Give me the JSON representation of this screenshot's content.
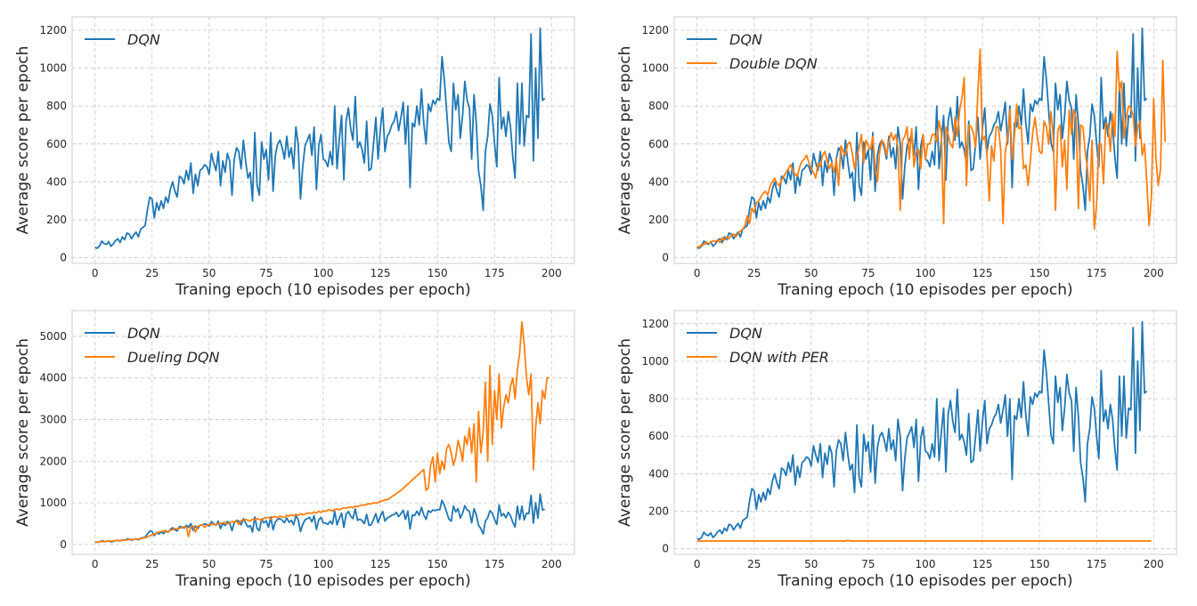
{
  "chart_data": [
    {
      "type": "line",
      "xlabel": "Traning epoch (10 episodes per epoch)",
      "ylabel": "Average score per epoch",
      "xlim": [
        -10,
        210
      ],
      "ylim": [
        -30,
        1270
      ],
      "xticks": [
        0,
        25,
        50,
        75,
        100,
        125,
        150,
        175,
        200
      ],
      "yticks": [
        0,
        200,
        400,
        600,
        800,
        1000,
        1200
      ],
      "grid": true,
      "legend": "top-left",
      "series": [
        {
          "name": "DQN",
          "color": "#1f77b4",
          "source": "dqn"
        }
      ]
    },
    {
      "type": "line",
      "xlabel": "Traning epoch (10 episodes per epoch)",
      "ylabel": "Average score per epoch",
      "xlim": [
        -10,
        210
      ],
      "ylim": [
        -30,
        1270
      ],
      "xticks": [
        0,
        25,
        50,
        75,
        100,
        125,
        150,
        175,
        200
      ],
      "yticks": [
        0,
        200,
        400,
        600,
        800,
        1000,
        1200
      ],
      "grid": true,
      "legend": "top-left",
      "series": [
        {
          "name": "DQN",
          "color": "#1f77b4",
          "source": "dqn"
        },
        {
          "name": "Double DQN",
          "color": "#ff7f0e",
          "source": "double"
        }
      ]
    },
    {
      "type": "line",
      "xlabel": "Traning epoch (10 episodes per epoch)",
      "ylabel": "Average score per epoch",
      "xlim": [
        -10,
        210
      ],
      "ylim": [
        -240,
        5620
      ],
      "xticks": [
        0,
        25,
        50,
        75,
        100,
        125,
        150,
        175,
        200
      ],
      "yticks": [
        0,
        1000,
        2000,
        3000,
        4000,
        5000
      ],
      "grid": true,
      "legend": "top-left",
      "series": [
        {
          "name": "DQN",
          "color": "#1f77b4",
          "source": "dqn"
        },
        {
          "name": "Dueling DQN",
          "color": "#ff7f0e",
          "source": "dueling"
        }
      ]
    },
    {
      "type": "line",
      "xlabel": "Traning epoch (10 episodes per epoch)",
      "ylabel": "Average score per epoch",
      "xlim": [
        -10,
        210
      ],
      "ylim": [
        -30,
        1270
      ],
      "xticks": [
        0,
        25,
        50,
        75,
        100,
        125,
        150,
        175,
        200
      ],
      "yticks": [
        0,
        200,
        400,
        600,
        800,
        1000,
        1200
      ],
      "grid": true,
      "legend": "top-left",
      "series": [
        {
          "name": "DQN",
          "color": "#1f77b4",
          "source": "dqn"
        },
        {
          "name": "DQN with PER",
          "color": "#ff7f0e",
          "source": "per"
        }
      ]
    }
  ],
  "series_values": {
    "dqn": [
      55,
      50,
      62,
      88,
      75,
      70,
      85,
      60,
      72,
      90,
      100,
      80,
      110,
      95,
      130,
      125,
      100,
      120,
      135,
      110,
      150,
      160,
      170,
      255,
      320,
      310,
      210,
      290,
      250,
      300,
      260,
      320,
      290,
      360,
      400,
      350,
      320,
      430,
      420,
      390,
      460,
      410,
      500,
      340,
      440,
      380,
      460,
      470,
      490,
      480,
      440,
      550,
      500,
      460,
      560,
      380,
      510,
      450,
      550,
      510,
      330,
      520,
      580,
      560,
      470,
      620,
      510,
      420,
      450,
      300,
      660,
      380,
      330,
      610,
      520,
      570,
      410,
      660,
      350,
      540,
      600,
      620,
      580,
      520,
      640,
      530,
      580,
      470,
      690,
      600,
      310,
      480,
      590,
      620,
      650,
      540,
      690,
      360,
      590,
      650,
      520,
      510,
      480,
      560,
      490,
      800,
      470,
      620,
      750,
      410,
      720,
      790,
      680,
      620,
      850,
      580,
      610,
      570,
      500,
      720,
      460,
      470,
      600,
      740,
      520,
      680,
      790,
      560,
      640,
      660,
      700,
      720,
      770,
      670,
      740,
      820,
      600,
      800,
      370,
      710,
      690,
      800,
      700,
      890,
      710,
      600,
      810,
      770,
      830,
      810,
      840,
      830,
      1060,
      940,
      780,
      610,
      560,
      920,
      780,
      860,
      630,
      750,
      930,
      830,
      790,
      520,
      860,
      710,
      460,
      380,
      250,
      560,
      640,
      810,
      750,
      600,
      480,
      950,
      680,
      740,
      640,
      770,
      690,
      530,
      420,
      920,
      600,
      920,
      590,
      750,
      740,
      1180,
      510,
      1000,
      630,
      1210,
      830,
      840
    ],
    "double": [
      60,
      55,
      70,
      68,
      82,
      75,
      80,
      90,
      85,
      95,
      80,
      105,
      95,
      110,
      100,
      120,
      125,
      110,
      130,
      140,
      150,
      170,
      220,
      180,
      260,
      240,
      290,
      300,
      320,
      340,
      350,
      330,
      380,
      400,
      420,
      390,
      380,
      410,
      430,
      450,
      470,
      490,
      460,
      440,
      430,
      480,
      510,
      520,
      540,
      500,
      470,
      450,
      420,
      500,
      480,
      540,
      560,
      510,
      470,
      500,
      450,
      520,
      380,
      590,
      560,
      540,
      600,
      610,
      550,
      470,
      540,
      580,
      650,
      500,
      620,
      590,
      570,
      640,
      480,
      400,
      560,
      620,
      600,
      540,
      610,
      660,
      620,
      650,
      580,
      250,
      620,
      640,
      690,
      520,
      680,
      480,
      560,
      570,
      470,
      650,
      520,
      600,
      600,
      650,
      650,
      610,
      720,
      660,
      180,
      690,
      650,
      600,
      580,
      740,
      640,
      780,
      840,
      950,
      380,
      700,
      690,
      660,
      580,
      880,
      1100,
      620,
      640,
      540,
      300,
      590,
      510,
      690,
      690,
      570,
      180,
      560,
      630,
      780,
      520,
      640,
      810,
      680,
      690,
      470,
      490,
      380,
      510,
      660,
      740,
      640,
      560,
      550,
      720,
      690,
      600,
      770,
      640,
      250,
      670,
      700,
      480,
      620,
      360,
      780,
      650,
      780,
      740,
      260,
      700,
      690,
      560,
      470,
      300,
      620,
      150,
      280,
      600,
      600,
      390,
      710,
      700,
      560,
      760,
      640,
      1090,
      880,
      930,
      630,
      740,
      800,
      790,
      750,
      590,
      690,
      720,
      540,
      600,
      390,
      170,
      320,
      840,
      520,
      380,
      470,
      1040,
      610
    ],
    "dueling": [
      60,
      55,
      65,
      70,
      68,
      75,
      80,
      78,
      85,
      90,
      95,
      88,
      100,
      110,
      105,
      115,
      120,
      118,
      125,
      130,
      140,
      150,
      160,
      180,
      210,
      230,
      250,
      270,
      290,
      310,
      320,
      330,
      300,
      340,
      350,
      380,
      370,
      390,
      400,
      420,
      420,
      190,
      430,
      440,
      300,
      430,
      460,
      470,
      410,
      460,
      480,
      470,
      490,
      460,
      510,
      500,
      520,
      530,
      490,
      520,
      550,
      540,
      560,
      480,
      570,
      590,
      600,
      580,
      560,
      610,
      590,
      620,
      600,
      570,
      630,
      640,
      650,
      610,
      660,
      670,
      640,
      680,
      660,
      650,
      700,
      680,
      710,
      690,
      720,
      700,
      740,
      710,
      730,
      750,
      760,
      740,
      780,
      750,
      800,
      770,
      810,
      790,
      820,
      830,
      800,
      840,
      850,
      830,
      860,
      880,
      870,
      890,
      900,
      880,
      920,
      910,
      930,
      950,
      940,
      960,
      980,
      970,
      1000,
      990,
      1010,
      1030,
      1050,
      1070,
      1080,
      1100,
      1150,
      1180,
      1220,
      1260,
      1300,
      1350,
      1400,
      1450,
      1500,
      1550,
      1600,
      1650,
      1700,
      1750,
      1800,
      1300,
      1350,
      1900,
      2100,
      1500,
      2200,
      1700,
      2000,
      1800,
      2300,
      2400,
      2200,
      1900,
      2100,
      2500,
      2300,
      2000,
      2600,
      2400,
      2800,
      2200,
      2900,
      1500,
      3200,
      2200,
      2700,
      3900,
      2000,
      4300,
      2400,
      3700,
      3000,
      4100,
      2800,
      3300,
      3600,
      3400,
      3800,
      4000,
      3500,
      4200,
      4600,
      5350,
      4800,
      4000,
      3600,
      4100,
      1800,
      2800,
      3400,
      2900,
      3700,
      3500,
      4000,
      4000
    ],
    "per": [
      42,
      41,
      42,
      41,
      42,
      41,
      42,
      41,
      42,
      41,
      42,
      41,
      42,
      41,
      42,
      41,
      42,
      41,
      42,
      41,
      42,
      41,
      42,
      41,
      42,
      41,
      42,
      41,
      42,
      41,
      42,
      41,
      42,
      41,
      42,
      41,
      42,
      41,
      42,
      41,
      42,
      41,
      42,
      41,
      42,
      41,
      42,
      41,
      42,
      41,
      42,
      41,
      42,
      41,
      42,
      41,
      42,
      41,
      42,
      41,
      42,
      41,
      42,
      41,
      42,
      41,
      45,
      41,
      42,
      41,
      42,
      41,
      42,
      41,
      42,
      41,
      42,
      41,
      42,
      41,
      42,
      41,
      42,
      41,
      42,
      41,
      42,
      41,
      42,
      41,
      42,
      41,
      42,
      41,
      42,
      41,
      42,
      41,
      42,
      41,
      42,
      41,
      42,
      41,
      42,
      41,
      42,
      41,
      42,
      41,
      42,
      41,
      42,
      41,
      42,
      41,
      42,
      41,
      42,
      41,
      42,
      41,
      42,
      41,
      42,
      41,
      42,
      41,
      42,
      41,
      42,
      41,
      42,
      41,
      42,
      41,
      42,
      41,
      42,
      41,
      42,
      41,
      42,
      41,
      42,
      41,
      42,
      41,
      42,
      41,
      42,
      41,
      42,
      41,
      42,
      41,
      42,
      41,
      42,
      41,
      42,
      41,
      42,
      41,
      42,
      41,
      42,
      41,
      42,
      41,
      42,
      41,
      42,
      41,
      42,
      41,
      42,
      41,
      42,
      41,
      42,
      41,
      42,
      41,
      42,
      41,
      42,
      41,
      42,
      41,
      42,
      41,
      42,
      41,
      42,
      41,
      42,
      41,
      42,
      41
    ]
  },
  "style": {
    "grid_color": "#cccccc",
    "frame_color": "#cccccc",
    "background": "#ffffff"
  }
}
